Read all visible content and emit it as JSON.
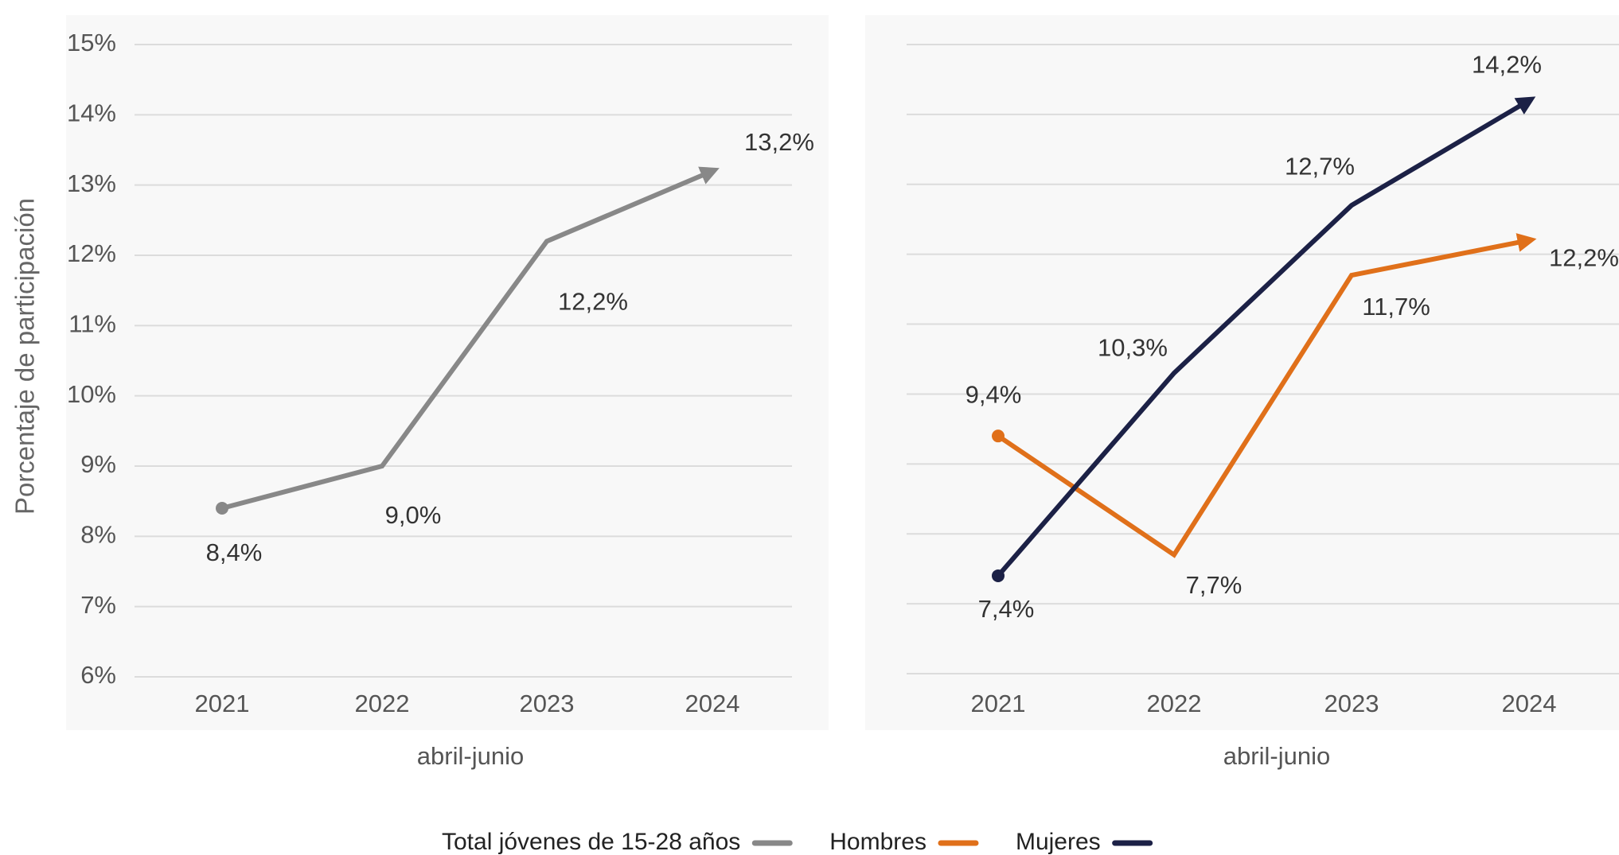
{
  "chart_data": [
    {
      "type": "line",
      "y_label": "Porcentaje de participación",
      "x_label": "abril-junio",
      "categories": [
        "2021",
        "2022",
        "2023",
        "2024"
      ],
      "series": [
        {
          "name": "Total jóvenes de 15-28 años",
          "color": "#888888",
          "values": [
            8.4,
            9.0,
            12.2,
            13.2
          ],
          "value_labels": [
            "8,4%",
            "9,0%",
            "12,2%",
            "13,2%"
          ]
        }
      ],
      "ylim": [
        6,
        15
      ],
      "yticks": [
        {
          "value": 6,
          "label": "6%"
        },
        {
          "value": 7,
          "label": "7%"
        },
        {
          "value": 8,
          "label": "8%"
        },
        {
          "value": 9,
          "label": "9%"
        },
        {
          "value": 10,
          "label": "10%"
        },
        {
          "value": 11,
          "label": "11%"
        },
        {
          "value": 12,
          "label": "12%"
        },
        {
          "value": 13,
          "label": "13%"
        },
        {
          "value": 14,
          "label": "14%"
        },
        {
          "value": 15,
          "label": "15%"
        }
      ],
      "grid": true
    },
    {
      "type": "line",
      "x_label": "abril-junio",
      "categories": [
        "2021",
        "2022",
        "2023",
        "2024"
      ],
      "series": [
        {
          "name": "Hombres",
          "color": "#e0701a",
          "values": [
            9.4,
            7.7,
            11.7,
            12.2
          ],
          "value_labels": [
            "9,4%",
            "7,7%",
            "11,7%",
            "12,2%"
          ]
        },
        {
          "name": "Mujeres",
          "color": "#1c2146",
          "values": [
            7.4,
            10.3,
            12.7,
            14.2
          ],
          "value_labels": [
            "7,4%",
            "10,3%",
            "12,7%",
            "14,2%"
          ]
        }
      ],
      "ylim": [
        6,
        15
      ],
      "yticks": [
        6,
        7,
        8,
        9,
        10,
        11,
        12,
        13,
        14,
        15
      ],
      "grid": true
    }
  ]
}
